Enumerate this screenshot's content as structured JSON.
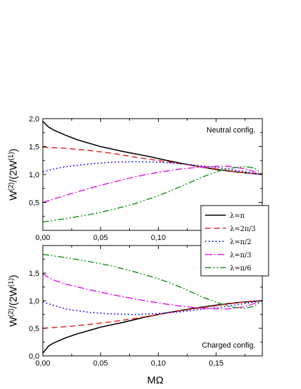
{
  "chart_data": {
    "type": "line",
    "xlabel": "MΩ",
    "ylabel_base": "W",
    "ylabel_sup1": "(2)",
    "ylabel_mid": "/(2W",
    "ylabel_sup2": "(1)",
    "ylabel_end": ")",
    "xlim": [
      0,
      0.19
    ],
    "xticks": [
      "0,00",
      "0,05",
      "0,10",
      "0,15"
    ],
    "xtick_values": [
      0,
      0.05,
      0.1,
      0.15
    ],
    "legend": {
      "placement": "right-middle",
      "entries": [
        "λ=π",
        "λ=2π/3",
        "λ=π/2",
        "λ=π/3",
        "λ=π/6"
      ]
    },
    "panels": [
      {
        "annotation": "Neutral config.",
        "ylim": [
          0.0,
          2.0
        ],
        "yticks": [
          "0,5",
          "1,0",
          "1,5",
          "2,0"
        ],
        "ytick_values": [
          0.5,
          1.0,
          1.5,
          2.0
        ],
        "series": [
          {
            "name": "λ=π",
            "color": "#000000",
            "dash": "none",
            "x": [
              0,
              0.005,
              0.01,
              0.02,
              0.03,
              0.05,
              0.07,
              0.09,
              0.11,
              0.13,
              0.15,
              0.17,
              0.19
            ],
            "y": [
              1.95,
              1.85,
              1.79,
              1.7,
              1.62,
              1.5,
              1.41,
              1.33,
              1.24,
              1.16,
              1.09,
              1.04,
              1.0
            ]
          },
          {
            "name": "λ=2π/3",
            "color": "#e8231d",
            "dash": "8,5",
            "x": [
              0,
              0.02,
              0.04,
              0.06,
              0.08,
              0.1,
              0.12,
              0.14,
              0.16,
              0.18,
              0.19
            ],
            "y": [
              1.49,
              1.47,
              1.43,
              1.38,
              1.31,
              1.25,
              1.19,
              1.13,
              1.07,
              1.02,
              1.0
            ]
          },
          {
            "name": "λ=π/2",
            "color": "#1a1ae6",
            "dash": "2,3",
            "x": [
              0,
              0.01,
              0.02,
              0.04,
              0.06,
              0.08,
              0.1,
              0.12,
              0.14,
              0.16,
              0.175,
              0.19
            ],
            "y": [
              1.05,
              1.1,
              1.14,
              1.19,
              1.22,
              1.23,
              1.22,
              1.19,
              1.15,
              1.1,
              1.05,
              1.0
            ]
          },
          {
            "name": "λ=π/3",
            "color": "#e11de1",
            "dash": "10,3,2,3",
            "x": [
              0,
              0.02,
              0.04,
              0.06,
              0.08,
              0.1,
              0.12,
              0.14,
              0.16,
              0.175,
              0.19
            ],
            "y": [
              0.5,
              0.63,
              0.75,
              0.86,
              0.96,
              1.04,
              1.1,
              1.14,
              1.15,
              1.1,
              1.0
            ]
          },
          {
            "name": "λ=π/6",
            "color": "#17961a",
            "dash": "9,3,2,3,2,3",
            "x": [
              0,
              0.02,
              0.04,
              0.06,
              0.08,
              0.1,
              0.12,
              0.14,
              0.155,
              0.165,
              0.175,
              0.183,
              0.19
            ],
            "y": [
              0.15,
              0.21,
              0.28,
              0.37,
              0.48,
              0.62,
              0.79,
              0.97,
              1.08,
              1.12,
              1.14,
              1.12,
              1.0
            ]
          }
        ]
      },
      {
        "annotation": "Charged config.",
        "ylim": [
          0.0,
          2.0
        ],
        "yticks": [
          "0,0",
          "0,5",
          "1,0",
          "1,5"
        ],
        "ytick_values": [
          0.0,
          0.5,
          1.0,
          1.5
        ],
        "series": [
          {
            "name": "λ=π",
            "color": "#000000",
            "dash": "none",
            "x": [
              0,
              0.005,
              0.01,
              0.02,
              0.03,
              0.05,
              0.07,
              0.09,
              0.11,
              0.13,
              0.15,
              0.17,
              0.19
            ],
            "y": [
              0.05,
              0.18,
              0.24,
              0.33,
              0.4,
              0.52,
              0.61,
              0.71,
              0.79,
              0.86,
              0.92,
              0.97,
              1.0
            ]
          },
          {
            "name": "λ=2π/3",
            "color": "#e8231d",
            "dash": "8,5",
            "x": [
              0,
              0.02,
              0.04,
              0.06,
              0.08,
              0.1,
              0.12,
              0.14,
              0.16,
              0.18,
              0.19
            ],
            "y": [
              0.5,
              0.53,
              0.57,
              0.62,
              0.68,
              0.75,
              0.82,
              0.88,
              0.94,
              0.99,
              1.0
            ]
          },
          {
            "name": "λ=π/2",
            "color": "#1a1ae6",
            "dash": "2,3",
            "x": [
              0,
              0.01,
              0.02,
              0.04,
              0.06,
              0.08,
              0.1,
              0.12,
              0.14,
              0.16,
              0.175,
              0.19
            ],
            "y": [
              0.98,
              0.91,
              0.85,
              0.79,
              0.76,
              0.75,
              0.77,
              0.8,
              0.85,
              0.9,
              0.95,
              1.0
            ]
          },
          {
            "name": "λ=π/3",
            "color": "#e11de1",
            "dash": "10,3,2,3",
            "x": [
              0,
              0.005,
              0.01,
              0.02,
              0.04,
              0.06,
              0.08,
              0.1,
              0.12,
              0.14,
              0.16,
              0.175,
              0.19
            ],
            "y": [
              1.49,
              1.42,
              1.37,
              1.3,
              1.2,
              1.11,
              1.03,
              0.96,
              0.9,
              0.86,
              0.85,
              0.89,
              1.0
            ]
          },
          {
            "name": "λ=π/6",
            "color": "#17961a",
            "dash": "9,3,2,3,2,3",
            "x": [
              0,
              0.02,
              0.04,
              0.06,
              0.08,
              0.1,
              0.12,
              0.14,
              0.155,
              0.165,
              0.175,
              0.183,
              0.19
            ],
            "y": [
              1.84,
              1.78,
              1.71,
              1.63,
              1.52,
              1.4,
              1.24,
              1.05,
              0.94,
              0.88,
              0.86,
              0.9,
              1.0
            ]
          }
        ]
      }
    ]
  }
}
